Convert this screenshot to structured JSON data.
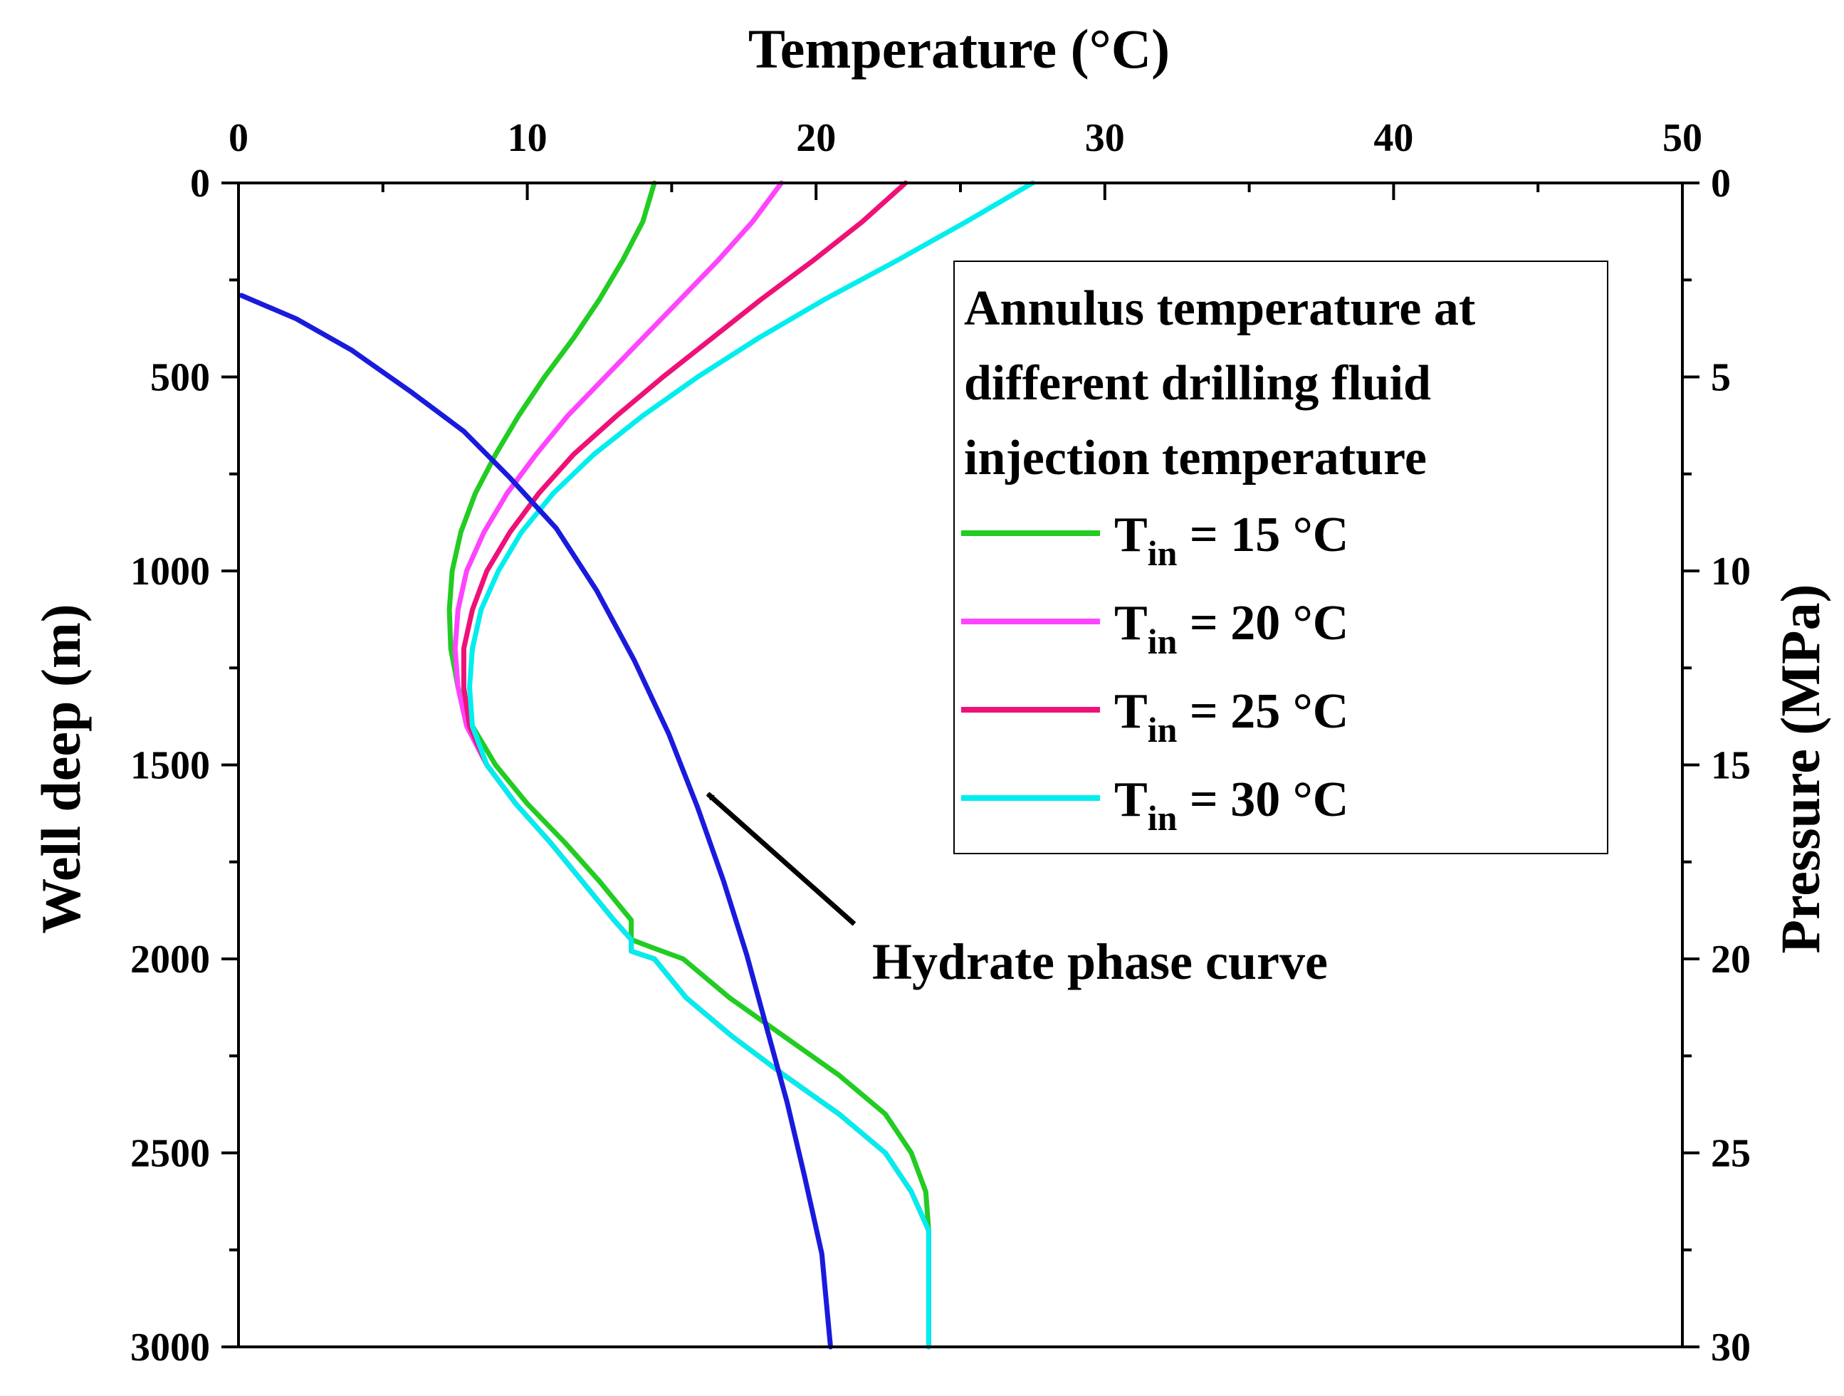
{
  "chart_data": {
    "type": "line",
    "title": "",
    "xlabel": "Temperature (°C)",
    "ylabel": "Well deep (m)",
    "y2label": "Pressure (MPa)",
    "xlim": [
      0,
      50
    ],
    "ylim": [
      0,
      3000
    ],
    "y2lim": [
      0,
      30
    ],
    "y_inverted": true,
    "x_axis_position": "top",
    "x_ticks": [
      "0",
      "10",
      "20",
      "30",
      "40",
      "50"
    ],
    "y_ticks": [
      "0",
      "500",
      "1000",
      "1500",
      "2000",
      "2500",
      "3000"
    ],
    "y2_ticks": [
      "0",
      "5",
      "10",
      "15",
      "20",
      "25",
      "30"
    ],
    "legend": {
      "title_lines": [
        "Annulus temperature at",
        "different drilling fluid",
        "injection temperature"
      ],
      "placement": "top-right"
    },
    "series": [
      {
        "name": "Tin = 15 °C",
        "label_main": "T",
        "label_sub": "in",
        "label_rest": " = 15 °C",
        "color": "#22cc22",
        "x": [
          14.4,
          14.0,
          13.3,
          12.5,
          11.6,
          10.6,
          9.7,
          8.9,
          8.2,
          7.7,
          7.4,
          7.3,
          7.35,
          7.6,
          8.1,
          8.9,
          10.0,
          11.3,
          12.5,
          13.6,
          13.6,
          14.3,
          15.4,
          17.0,
          18.9,
          20.8,
          22.4,
          23.3,
          23.8,
          23.9
        ],
        "y": [
          0,
          100,
          200,
          300,
          400,
          500,
          600,
          700,
          800,
          900,
          1000,
          1100,
          1200,
          1300,
          1400,
          1500,
          1600,
          1700,
          1800,
          1900,
          1950,
          1970,
          2000,
          2100,
          2200,
          2300,
          2400,
          2500,
          2600,
          2700
        ]
      },
      {
        "name": "Tin = 20 °C",
        "label_main": "T",
        "label_sub": "in",
        "label_rest": " = 20 °C",
        "color": "#ff44ff",
        "x": [
          18.8,
          17.8,
          16.6,
          15.3,
          14.0,
          12.7,
          11.4,
          10.3,
          9.3,
          8.5,
          7.9,
          7.6,
          7.5,
          7.6,
          7.9,
          8.6,
          9.6,
          10.8,
          11.9,
          13.0,
          13.6,
          13.6,
          14.4,
          15.5,
          17.1,
          18.9,
          20.8,
          22.4,
          23.3,
          23.9,
          23.9
        ],
        "y": [
          0,
          100,
          200,
          300,
          400,
          500,
          600,
          700,
          800,
          900,
          1000,
          1100,
          1200,
          1300,
          1400,
          1500,
          1600,
          1700,
          1800,
          1900,
          1950,
          1980,
          2000,
          2100,
          2200,
          2300,
          2400,
          2500,
          2600,
          2700,
          3000
        ]
      },
      {
        "name": "Tin = 25 °C",
        "label_main": "T",
        "label_sub": "in",
        "label_rest": " = 25 °C",
        "color": "#ee1177",
        "x": [
          23.1,
          21.6,
          19.9,
          18.1,
          16.4,
          14.7,
          13.1,
          11.6,
          10.4,
          9.4,
          8.6,
          8.1,
          7.8,
          7.8,
          8.0,
          8.6,
          9.6,
          10.8,
          11.9,
          13.0,
          13.6,
          13.6,
          14.4,
          15.5,
          17.1,
          18.9,
          20.8,
          22.4,
          23.3,
          23.9,
          23.9
        ],
        "y": [
          0,
          100,
          200,
          300,
          400,
          500,
          600,
          700,
          800,
          900,
          1000,
          1100,
          1200,
          1300,
          1400,
          1500,
          1600,
          1700,
          1800,
          1900,
          1950,
          1980,
          2000,
          2100,
          2200,
          2300,
          2400,
          2500,
          2600,
          2700,
          3000
        ]
      },
      {
        "name": "Tin = 30 °C",
        "label_main": "T",
        "label_sub": "in",
        "label_rest": " = 30 °C",
        "color": "#00eeee",
        "x": [
          27.5,
          25.2,
          22.8,
          20.3,
          18.0,
          15.9,
          14.0,
          12.3,
          10.9,
          9.8,
          9.0,
          8.4,
          8.1,
          8.0,
          8.1,
          8.6,
          9.6,
          10.8,
          11.9,
          13.0,
          13.6,
          13.6,
          14.4,
          15.5,
          17.1,
          18.9,
          20.8,
          22.4,
          23.3,
          23.9,
          23.9
        ],
        "y": [
          0,
          100,
          200,
          300,
          400,
          500,
          600,
          700,
          800,
          900,
          1000,
          1100,
          1200,
          1300,
          1400,
          1500,
          1600,
          1700,
          1800,
          1900,
          1950,
          1980,
          2000,
          2100,
          2200,
          2300,
          2400,
          2500,
          2600,
          2700,
          3000
        ]
      },
      {
        "name": "Hydrate phase curve",
        "color": "#1a1add",
        "x": [
          0.1,
          2.0,
          3.9,
          6.0,
          7.8,
          9.4,
          11.0,
          12.4,
          13.7,
          14.9,
          15.9,
          16.8,
          17.6,
          18.3,
          19.0,
          19.6,
          20.2,
          20.5
        ],
        "y": [
          290,
          350,
          430,
          540,
          640,
          760,
          890,
          1050,
          1230,
          1420,
          1610,
          1800,
          1990,
          2180,
          2370,
          2560,
          2760,
          3000
        ]
      }
    ],
    "annotations": [
      {
        "text": "Hydrate phase curve",
        "target_series": "Hydrate phase curve"
      }
    ]
  }
}
